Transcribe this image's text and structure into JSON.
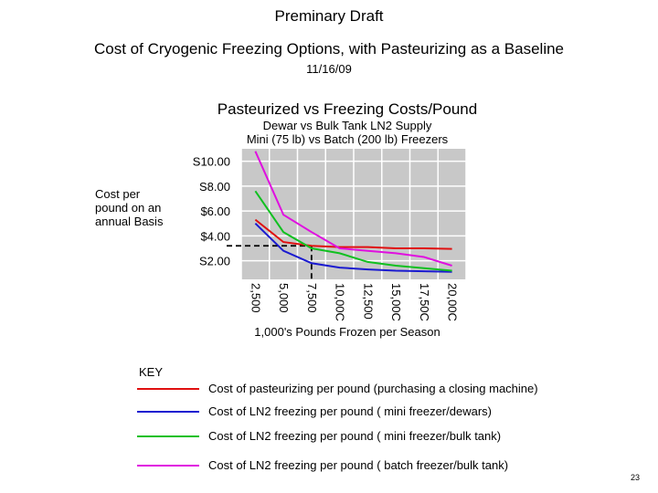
{
  "header": {
    "title": "Preminary Draft",
    "subtitle": "Cost of Cryogenic Freezing Options, with Pasteurizing as a Baseline",
    "date": "11/16/09"
  },
  "chart_data": {
    "type": "line",
    "title": "Pasteurized vs Freezing Costs/Pound",
    "subtitle_lines": [
      "Dewar vs Bulk Tank LN2 Supply",
      "Mini (75 lb) vs Batch (200 lb) Freezers"
    ],
    "ylabel": "Cost per pound on an annual Basis",
    "xlabel": "1,000's Pounds Frozen per Season",
    "categories": [
      "2,500",
      "5,000",
      "7,500",
      "10,00C",
      "12,500",
      "15,00C",
      "17,50C",
      "20,00C"
    ],
    "y_tick_labels": [
      "S2.00",
      "$4.00",
      "$6.00",
      "S8.00",
      "S10.00"
    ],
    "y_tick_values": [
      2,
      4,
      6,
      8,
      10
    ],
    "ylim": [
      0.5,
      11
    ],
    "grid": true,
    "series": [
      {
        "name": "Cost of pasteurizing per pound (purchasing a closing machine)",
        "color": "#e01010",
        "values": [
          5.3,
          3.5,
          3.2,
          3.1,
          3.1,
          3.0,
          3.0,
          2.95
        ]
      },
      {
        "name": "Cost of LN2 freezing per pound ( mini freezer/dewars)",
        "color": "#1a1ad0",
        "values": [
          5.0,
          2.8,
          1.8,
          1.45,
          1.3,
          1.2,
          1.15,
          1.1
        ]
      },
      {
        "name": "Cost of LN2 freezing per pound ( mini freezer/bulk tank)",
        "color": "#10c020",
        "values": [
          7.6,
          4.3,
          3.0,
          2.6,
          1.9,
          1.6,
          1.4,
          1.2
        ]
      },
      {
        "name": "Cost of LN2 freezing per pound ( batch freezer/bulk tank)",
        "color": "#e010e0",
        "values": [
          10.8,
          5.7,
          4.3,
          3.0,
          2.8,
          2.6,
          2.3,
          1.6
        ]
      }
    ],
    "reference_lines": {
      "y": 3.2,
      "x_category": "7,500"
    }
  },
  "key": {
    "title": "KEY"
  },
  "page_number": "23"
}
